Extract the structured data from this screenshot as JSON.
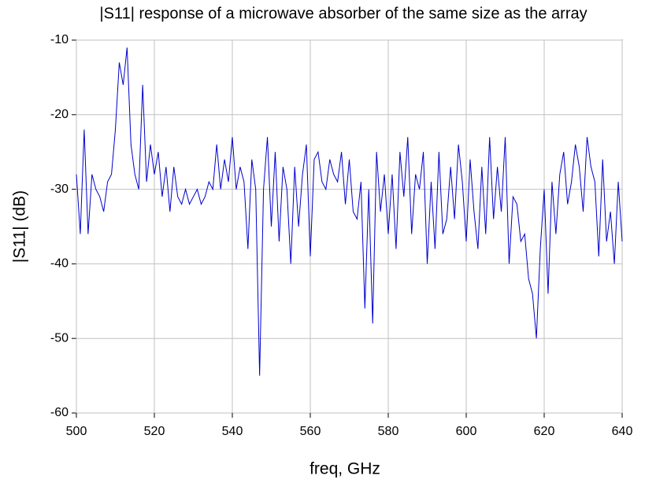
{
  "chart_data": {
    "type": "line",
    "title": "|S11| response of a microwave absorber of the same size as the array",
    "x_label": "freq, GHz",
    "y_label": "|S11| (dB)",
    "xlim": [
      500,
      640
    ],
    "xticks": [
      500,
      520,
      540,
      560,
      580,
      600,
      620,
      640
    ],
    "ylim": [
      -60,
      -10
    ],
    "yticks": [
      -60,
      -50,
      -40,
      -30,
      -20,
      -10
    ],
    "grid": true,
    "x": [
      500,
      501,
      502,
      503,
      504,
      505,
      506,
      507,
      508,
      509,
      510,
      511,
      512,
      513,
      514,
      515,
      516,
      517,
      518,
      519,
      520,
      521,
      522,
      523,
      524,
      525,
      526,
      527,
      528,
      529,
      530,
      531,
      532,
      533,
      534,
      535,
      536,
      537,
      538,
      539,
      540,
      541,
      542,
      543,
      544,
      545,
      546,
      547,
      548,
      549,
      550,
      551,
      552,
      553,
      554,
      555,
      556,
      557,
      558,
      559,
      560,
      561,
      562,
      563,
      564,
      565,
      566,
      567,
      568,
      569,
      570,
      571,
      572,
      573,
      574,
      575,
      576,
      577,
      578,
      579,
      580,
      581,
      582,
      583,
      584,
      585,
      586,
      587,
      588,
      589,
      590,
      591,
      592,
      593,
      594,
      595,
      596,
      597,
      598,
      599,
      600,
      601,
      602,
      603,
      604,
      605,
      606,
      607,
      608,
      609,
      610,
      611,
      612,
      613,
      614,
      615,
      616,
      617,
      618,
      619,
      620,
      621,
      622,
      623,
      624,
      625,
      626,
      627,
      628,
      629,
      630,
      631,
      632,
      633,
      634,
      635,
      636,
      637,
      638,
      639,
      640
    ],
    "series": [
      {
        "color": "#0000cc",
        "values": [
          -28,
          -36,
          -22,
          -36,
          -28,
          -30,
          -31,
          -33,
          -29,
          -28,
          -22,
          -13,
          -16,
          -11,
          -24,
          -28,
          -30,
          -16,
          -29,
          -24,
          -28,
          -25,
          -31,
          -27,
          -33,
          -27,
          -31,
          -32,
          -30,
          -32,
          -31,
          -30,
          -32,
          -31,
          -29,
          -30,
          -24,
          -30,
          -26,
          -29,
          -23,
          -30,
          -27,
          -29,
          -38,
          -26,
          -30,
          -55,
          -30,
          -23,
          -35,
          -25,
          -37,
          -27,
          -30,
          -40,
          -27,
          -35,
          -28,
          -24,
          -39,
          -26,
          -25,
          -29,
          -30,
          -26,
          -28,
          -29,
          -25,
          -32,
          -26,
          -33,
          -34,
          -29,
          -46,
          -30,
          -48,
          -25,
          -33,
          -28,
          -36,
          -28,
          -38,
          -25,
          -31,
          -23,
          -36,
          -28,
          -30,
          -25,
          -40,
          -29,
          -38,
          -25,
          -36,
          -34,
          -27,
          -34,
          -24,
          -29,
          -37,
          -26,
          -33,
          -38,
          -27,
          -36,
          -23,
          -34,
          -27,
          -33,
          -23,
          -40,
          -31,
          -32,
          -37,
          -36,
          -42,
          -44,
          -50,
          -38,
          -30,
          -44,
          -29,
          -36,
          -28,
          -25,
          -32,
          -29,
          -24,
          -27,
          -33,
          -23,
          -27,
          -29,
          -39,
          -26,
          -37,
          -33,
          -40,
          -29,
          -37
        ]
      }
    ]
  }
}
